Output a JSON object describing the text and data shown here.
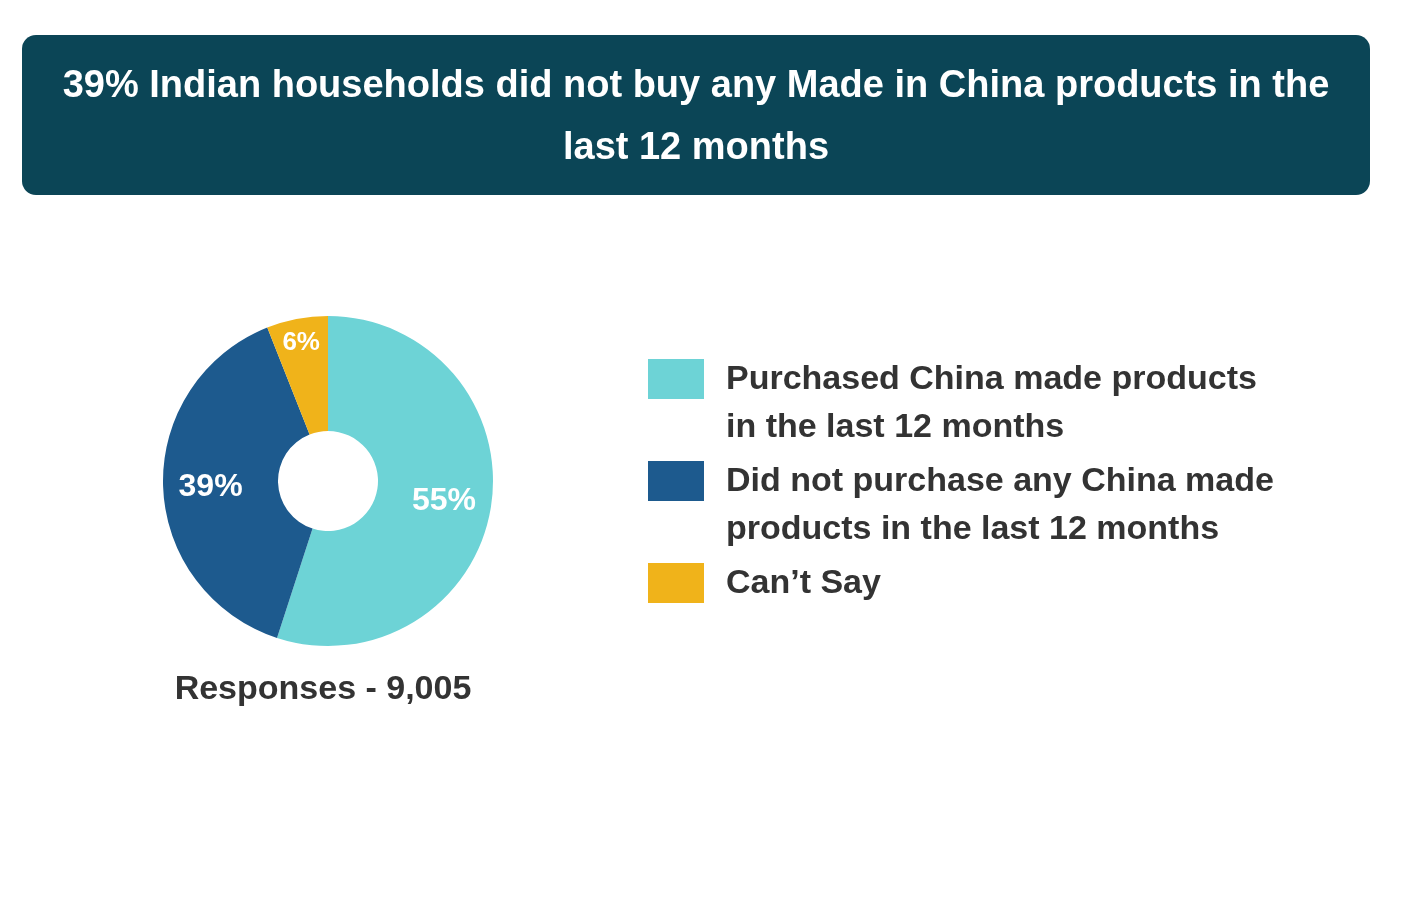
{
  "chart_data": {
    "type": "donut",
    "title": "39% Indian households did not buy any Made in China products in the last 12 months",
    "categories": [
      "Purchased China made products in the last 12 months",
      "Did not purchase any China made products in the last 12 months",
      "Can’t Say"
    ],
    "values": [
      55,
      39,
      6
    ],
    "colors": [
      "#6dd3d6",
      "#1d5a8e",
      "#f0b31a"
    ],
    "value_labels": [
      "55%",
      "39%",
      "6%"
    ],
    "legend": "right",
    "annotations": [
      "Responses - 9,005"
    ]
  }
}
